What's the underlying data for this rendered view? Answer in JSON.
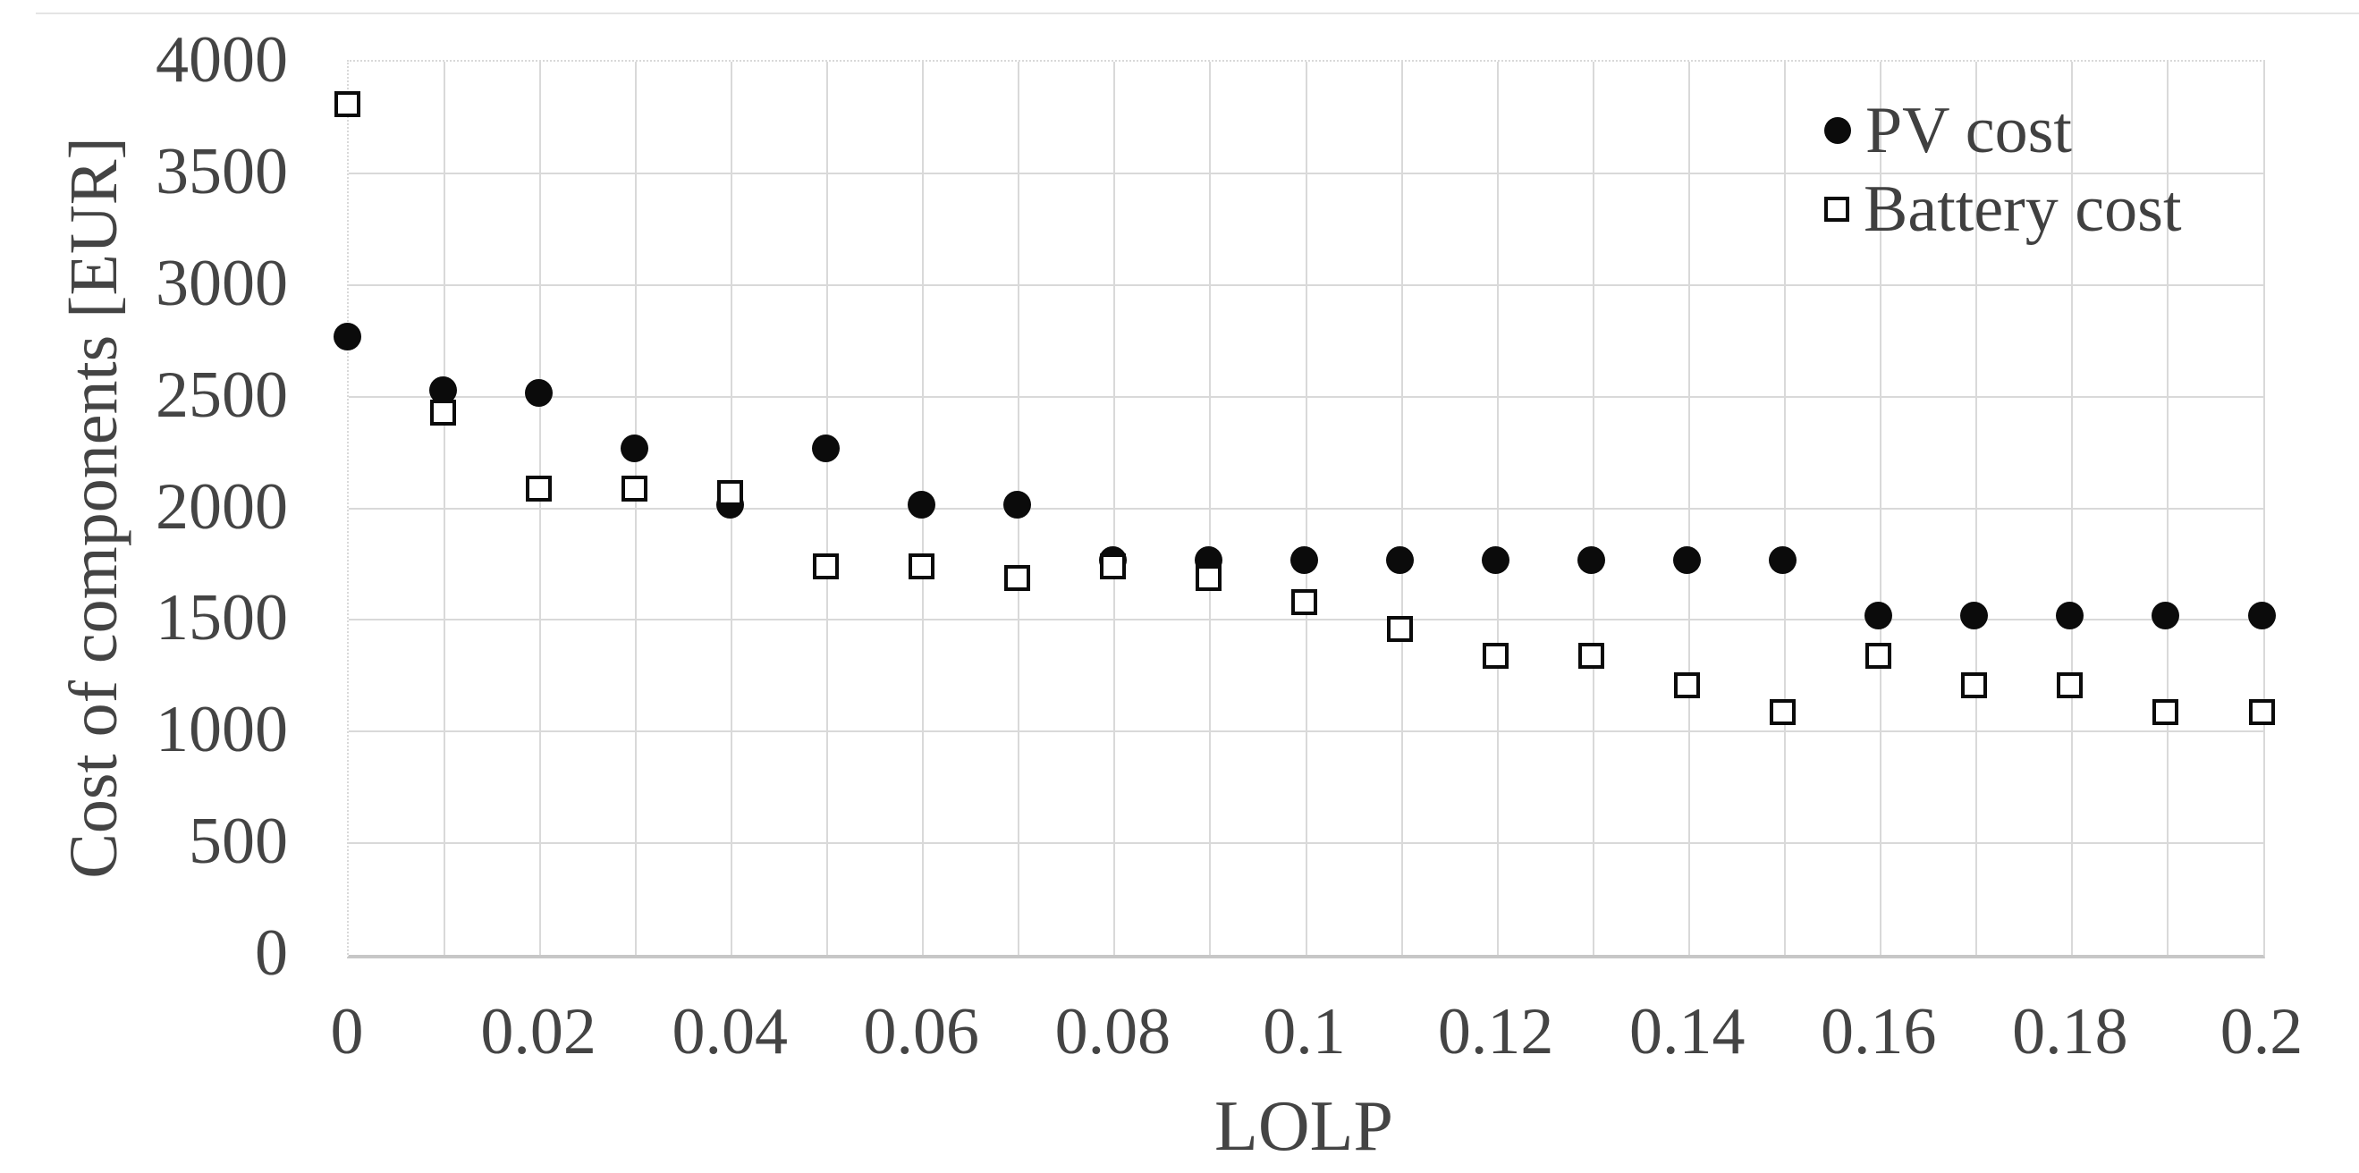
{
  "chart_data": {
    "type": "scatter",
    "title": "",
    "xlabel": "LOLP",
    "ylabel": "Cost of components [EUR]",
    "xlim": [
      0,
      0.2
    ],
    "ylim": [
      0,
      4000
    ],
    "grid": true,
    "legend_position": "top-right",
    "x": [
      0,
      0.01,
      0.02,
      0.03,
      0.04,
      0.05,
      0.06,
      0.07,
      0.08,
      0.09,
      0.1,
      0.11,
      0.12,
      0.13,
      0.14,
      0.15,
      0.16,
      0.17,
      0.18,
      0.19,
      0.2
    ],
    "series": [
      {
        "name": "PV cost",
        "marker": "filled-circle",
        "values": [
          2760,
          2520,
          2510,
          2260,
          2010,
          2260,
          2010,
          2010,
          1760,
          1760,
          1760,
          1760,
          1760,
          1760,
          1760,
          1760,
          1510,
          1510,
          1510,
          1510,
          1510
        ]
      },
      {
        "name": "Battery cost",
        "marker": "open-square",
        "values": [
          3800,
          2420,
          2080,
          2080,
          2060,
          1730,
          1730,
          1680,
          1730,
          1680,
          1570,
          1450,
          1330,
          1330,
          1200,
          1080,
          1330,
          1200,
          1200,
          1080,
          1080
        ]
      }
    ],
    "x_tick_labels": [
      "0",
      "0.02",
      "0.04",
      "0.06",
      "0.08",
      "0.1",
      "0.12",
      "0.14",
      "0.16",
      "0.18",
      "0.2"
    ],
    "x_tick_values": [
      0,
      0.02,
      0.04,
      0.06,
      0.08,
      0.1,
      0.12,
      0.14,
      0.16,
      0.18,
      0.2
    ],
    "y_tick_labels": [
      "0",
      "500",
      "1000",
      "1500",
      "2000",
      "2500",
      "3000",
      "3500",
      "4000"
    ],
    "y_tick_values": [
      0,
      500,
      1000,
      1500,
      2000,
      2500,
      3000,
      3500,
      4000
    ]
  },
  "axes": {
    "x_title": "LOLP",
    "y_title": "Cost of components [EUR]"
  },
  "legend": {
    "items": [
      {
        "label": "PV cost",
        "marker": "filled-circle-icon"
      },
      {
        "label": "Battery cost",
        "marker": "open-square-icon"
      }
    ]
  },
  "colors": {
    "marker": "#0b0b0b",
    "gridline": "#d9d9d9",
    "axis_line": "#c7c7c7",
    "text": "#404040",
    "background": "#ffffff"
  }
}
